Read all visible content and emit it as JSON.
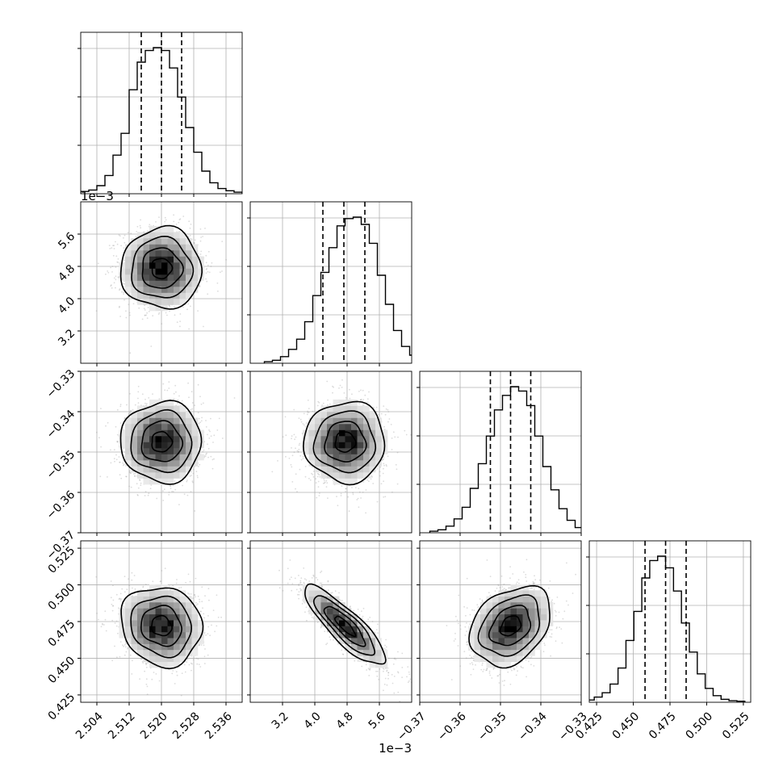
{
  "chart_data": {
    "type": "corner",
    "params": [
      {
        "id": "p0",
        "range": [
          2.5,
          2.54
        ],
        "ticks": [
          2.504,
          2.512,
          2.52,
          2.528,
          2.536
        ],
        "tick_labels": [
          "2.504",
          "2.512",
          "2.520",
          "2.528",
          "2.536"
        ],
        "offset_label": "",
        "mean": 2.52,
        "sd": 0.005,
        "quantiles": [
          2.515,
          2.52,
          2.525
        ],
        "hist_heights": [
          0.01,
          0.02,
          0.05,
          0.12,
          0.26,
          0.41,
          0.71,
          0.9,
          0.98,
          1.0,
          0.98,
          0.86,
          0.66,
          0.45,
          0.28,
          0.15,
          0.07,
          0.03,
          0.015,
          0.005
        ]
      },
      {
        "id": "p1",
        "range": [
          2.4,
          6.4
        ],
        "ticks": [
          3.2,
          4.0,
          4.8,
          5.6
        ],
        "tick_labels": [
          "3.2",
          "4.0",
          "4.8",
          "5.6"
        ],
        "offset_label": "1e−3",
        "mean": 4.75,
        "sd": 0.5,
        "quantiles": [
          4.2,
          4.72,
          5.24
        ],
        "hist_heights": [
          0.005,
          0.015,
          0.04,
          0.09,
          0.16,
          0.28,
          0.46,
          0.62,
          0.79,
          0.94,
          0.99,
          1.0,
          0.95,
          0.82,
          0.6,
          0.4,
          0.22,
          0.11,
          0.05,
          0.02
        ]
      },
      {
        "id": "p2",
        "range": [
          -0.37,
          -0.33
        ],
        "ticks": [
          -0.37,
          -0.36,
          -0.35,
          -0.34,
          -0.33
        ],
        "tick_labels": [
          "−0.37",
          "−0.36",
          "−0.35",
          "−0.34",
          "−0.33"
        ],
        "offset_label": "",
        "mean": -0.3475,
        "sd": 0.005,
        "quantiles": [
          -0.3525,
          -0.3475,
          -0.3425
        ],
        "hist_heights": [
          0.005,
          0.015,
          0.04,
          0.09,
          0.17,
          0.3,
          0.47,
          0.66,
          0.84,
          0.94,
          1.0,
          0.97,
          0.87,
          0.66,
          0.45,
          0.29,
          0.16,
          0.08,
          0.03,
          0.01
        ]
      },
      {
        "id": "p3",
        "range": [
          0.42,
          0.53
        ],
        "ticks": [
          0.425,
          0.45,
          0.475,
          0.5,
          0.525
        ],
        "tick_labels": [
          "0.425",
          "0.450",
          "0.475",
          "0.500",
          "0.525"
        ],
        "offset_label": "",
        "mean": 0.472,
        "sd": 0.0135,
        "quantiles": [
          0.458,
          0.472,
          0.486
        ],
        "hist_heights": [
          0.01,
          0.03,
          0.06,
          0.12,
          0.23,
          0.42,
          0.62,
          0.85,
          0.97,
          1.0,
          0.92,
          0.76,
          0.54,
          0.34,
          0.19,
          0.09,
          0.04,
          0.015,
          0.005,
          0.002
        ]
      }
    ],
    "correlations": {
      "1-0": 0.0,
      "2-0": 0.0,
      "2-1": 0.0,
      "3-0": -0.1,
      "3-1": -0.85,
      "3-2": 0.3
    },
    "contour_levels_sigma": [
      0.5,
      1.0,
      1.5,
      2.0
    ],
    "grid": true,
    "colors": {
      "line": "#000000",
      "grid": "#b0b0b0",
      "scatter": "#9a9a9a"
    }
  }
}
